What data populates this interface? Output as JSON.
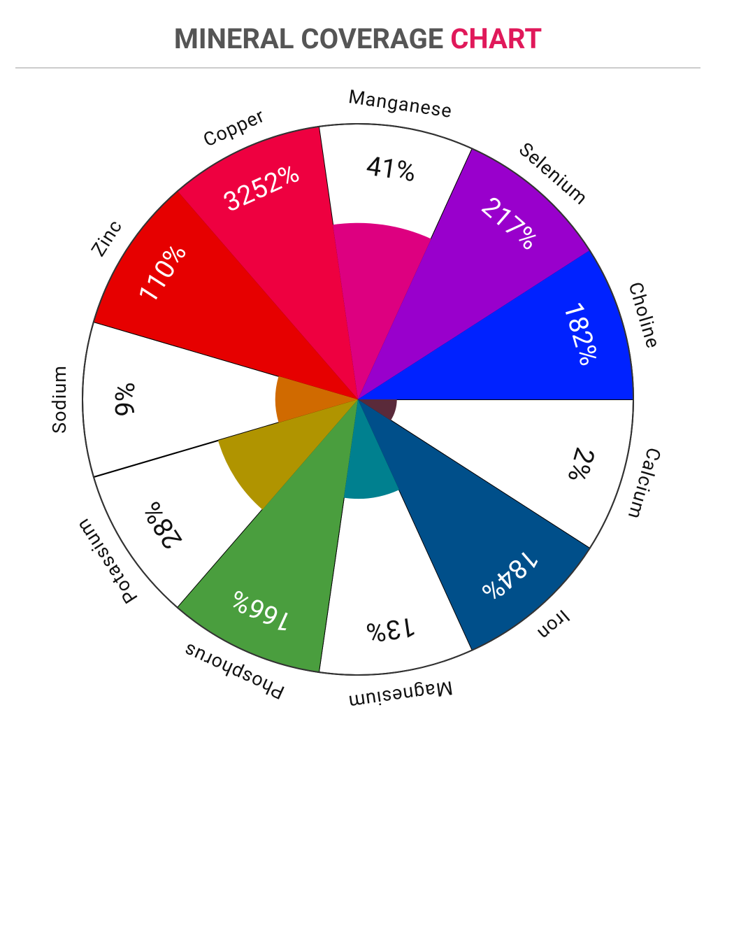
{
  "chart_data": {
    "type": "polar-area",
    "title": "MINERAL COVERAGE",
    "title_accent": "CHART",
    "categories": [
      "Calcium",
      "Iron",
      "Magnesium",
      "Phosphorus",
      "Potassium",
      "Sodium",
      "Zinc",
      "Copper",
      "Manganese",
      "Selenium",
      "Choline"
    ],
    "values": [
      2,
      184,
      13,
      166,
      28,
      9,
      110,
      3252,
      41,
      217,
      182
    ],
    "value_labels": [
      "2%",
      "184%",
      "13%",
      "166%",
      "28%",
      "9%",
      "110%",
      "3252%",
      "41%",
      "217%",
      "182%"
    ],
    "colors": [
      "#5a2a3a",
      "#004f8a",
      "#00808f",
      "#4a9e3e",
      "#b09400",
      "#d06a00",
      "#e60000",
      "#ee0040",
      "#dd0080",
      "#9900cc",
      "#0022ff"
    ],
    "rlim": [
      0,
      100
    ],
    "radius_scale": "sqrt"
  }
}
